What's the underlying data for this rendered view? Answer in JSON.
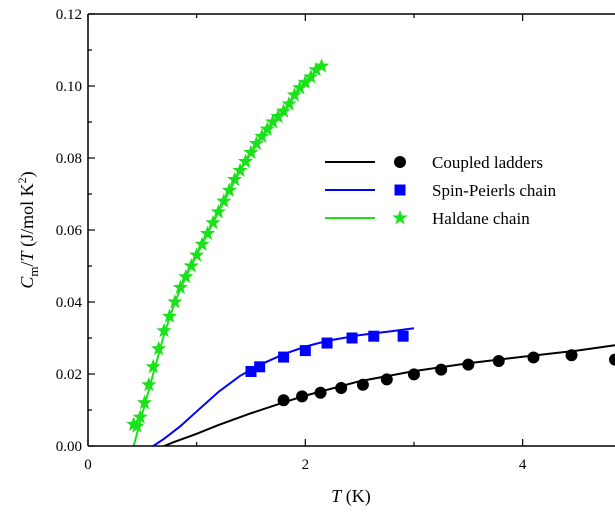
{
  "chart_data": {
    "type": "scatter",
    "title": "",
    "xlabel": {
      "symbol": "T",
      "unit": " (K)"
    },
    "ylabel": {
      "symbol": "C",
      "sub": "m",
      "slash": "/",
      "T": "T",
      "unit": " (J/mol K",
      "sup": "2",
      "close": ")"
    },
    "xlim": [
      0,
      4.85
    ],
    "ylim": [
      0,
      0.12
    ],
    "x_ticks": [
      0,
      2,
      4
    ],
    "x_tick_labels": [
      "0",
      "2",
      "4"
    ],
    "y_ticks": [
      0,
      0.02,
      0.04,
      0.06,
      0.08,
      0.1,
      0.12
    ],
    "y_tick_labels": [
      "0.00",
      "0.02",
      "0.04",
      "0.06",
      "0.08",
      "0.10",
      "0.12"
    ],
    "legend_position": "upper-right",
    "series": [
      {
        "name": "Coupled ladders",
        "color": "#000000",
        "marker": "circle",
        "points": [
          [
            1.8,
            0.0127
          ],
          [
            1.97,
            0.0138
          ],
          [
            2.14,
            0.0148
          ],
          [
            2.33,
            0.0161
          ],
          [
            2.53,
            0.017
          ],
          [
            2.75,
            0.0185
          ],
          [
            3.0,
            0.0199
          ],
          [
            3.25,
            0.0212
          ],
          [
            3.5,
            0.0226
          ],
          [
            3.78,
            0.0236
          ],
          [
            4.1,
            0.0246
          ],
          [
            4.45,
            0.0252
          ],
          [
            4.85,
            0.024
          ]
        ],
        "fit": [
          [
            0.7,
            0.0
          ],
          [
            0.8,
            0.0012
          ],
          [
            1.0,
            0.0034
          ],
          [
            1.2,
            0.0058
          ],
          [
            1.5,
            0.0091
          ],
          [
            1.8,
            0.0121
          ],
          [
            2.0,
            0.014
          ],
          [
            2.5,
            0.018
          ],
          [
            3.0,
            0.0208
          ],
          [
            3.5,
            0.023
          ],
          [
            4.0,
            0.0248
          ],
          [
            4.5,
            0.0265
          ],
          [
            4.85,
            0.028
          ]
        ]
      },
      {
        "name": "Spin-Peierls chain",
        "color": "#0000ff",
        "marker": "square",
        "points": [
          [
            1.5,
            0.0207
          ],
          [
            1.58,
            0.022
          ],
          [
            1.8,
            0.0247
          ],
          [
            2.0,
            0.0265
          ],
          [
            2.2,
            0.0286
          ],
          [
            2.43,
            0.03
          ],
          [
            2.63,
            0.0305
          ],
          [
            2.9,
            0.0305
          ]
        ],
        "fit": [
          [
            0.6,
            0.0
          ],
          [
            0.7,
            0.002
          ],
          [
            0.85,
            0.0055
          ],
          [
            1.0,
            0.0096
          ],
          [
            1.2,
            0.015
          ],
          [
            1.4,
            0.0195
          ],
          [
            1.6,
            0.0228
          ],
          [
            1.8,
            0.0255
          ],
          [
            2.0,
            0.0276
          ],
          [
            2.2,
            0.0292
          ],
          [
            2.5,
            0.0308
          ],
          [
            2.8,
            0.0319
          ],
          [
            3.0,
            0.0327
          ]
        ]
      },
      {
        "name": "Haldane chain",
        "color": "#1be11b",
        "marker": "star",
        "points": [
          [
            0.42,
            0.006
          ],
          [
            0.45,
            0.0055
          ],
          [
            0.48,
            0.008
          ],
          [
            0.52,
            0.012
          ],
          [
            0.56,
            0.017
          ],
          [
            0.6,
            0.022
          ],
          [
            0.65,
            0.027
          ],
          [
            0.7,
            0.032
          ],
          [
            0.75,
            0.036
          ],
          [
            0.8,
            0.04
          ],
          [
            0.85,
            0.044
          ],
          [
            0.9,
            0.047
          ],
          [
            0.95,
            0.05
          ],
          [
            1.0,
            0.053
          ],
          [
            1.05,
            0.056
          ],
          [
            1.1,
            0.059
          ],
          [
            1.15,
            0.062
          ],
          [
            1.2,
            0.065
          ],
          [
            1.25,
            0.068
          ],
          [
            1.3,
            0.071
          ],
          [
            1.35,
            0.074
          ],
          [
            1.4,
            0.0765
          ],
          [
            1.45,
            0.079
          ],
          [
            1.5,
            0.0815
          ],
          [
            1.55,
            0.084
          ],
          [
            1.6,
            0.086
          ],
          [
            1.65,
            0.088
          ],
          [
            1.7,
            0.09
          ],
          [
            1.75,
            0.0915
          ],
          [
            1.8,
            0.093
          ],
          [
            1.85,
            0.095
          ],
          [
            1.9,
            0.0975
          ],
          [
            1.95,
            0.0995
          ],
          [
            2.0,
            0.101
          ],
          [
            2.05,
            0.1025
          ],
          [
            2.1,
            0.1045
          ],
          [
            2.15,
            0.1055
          ]
        ],
        "fit": [
          [
            0.42,
            0.0
          ],
          [
            0.5,
            0.009
          ],
          [
            0.6,
            0.02
          ],
          [
            0.7,
            0.031
          ],
          [
            0.8,
            0.04
          ],
          [
            0.9,
            0.047
          ],
          [
            1.0,
            0.053
          ],
          [
            1.2,
            0.065
          ],
          [
            1.4,
            0.0765
          ],
          [
            1.6,
            0.086
          ],
          [
            1.8,
            0.093
          ],
          [
            2.0,
            0.101
          ],
          [
            2.15,
            0.106
          ]
        ]
      }
    ]
  }
}
